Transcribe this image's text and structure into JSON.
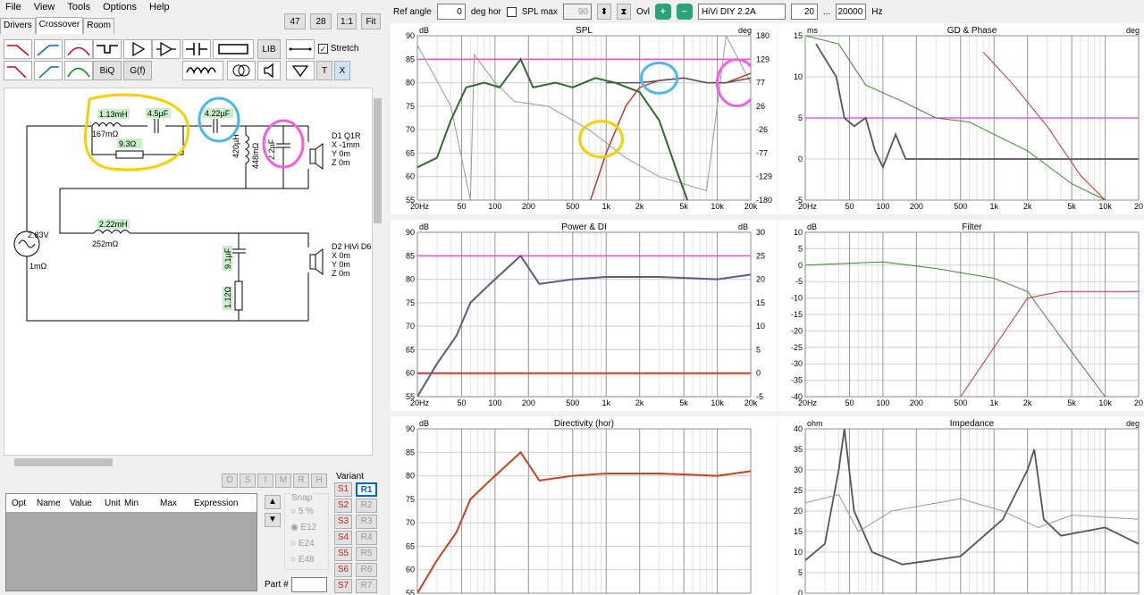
{
  "menu": [
    "File",
    "View",
    "Tools",
    "Options",
    "Help"
  ],
  "tabs": [
    "Drivers",
    "Crossover",
    "Room"
  ],
  "active_tab": "Crossover",
  "view_buttons": [
    "47",
    "28",
    "1:1",
    "Fit"
  ],
  "toolbar": {
    "lib": "LIB",
    "stretch": "Stretch",
    "biq": "BiQ",
    "gf": "G(f)",
    "t": "T",
    "x": "X"
  },
  "circuit": {
    "source_voltage": "2.83V",
    "source_res": "1mΩ",
    "l1": "1.13mH",
    "l1_res": "167mΩ",
    "c1": "4.5µF",
    "r1": "9.3Ω",
    "c2": "4.22µF",
    "l2": "420µH",
    "l2_res": "448mΩ",
    "c3": "2.2µF",
    "d1_name": "D1 Q1R",
    "d1_x": "X -1mm",
    "d1_y": "Y 0m",
    "d1_z": "Z 0m",
    "l3": "2.22mH",
    "l3_res": "252mΩ",
    "c4": "9.1µF",
    "r2": "1.12Ω",
    "d2_name": "D2 HiVi D6",
    "d2_x": "X 0m",
    "d2_y": "Y 0m",
    "d2_z": "Z 0m"
  },
  "opt_buttons": [
    "O",
    "S",
    "I",
    "M",
    "R",
    "H"
  ],
  "table_headers": [
    "Opt",
    "Name",
    "Value",
    "Unit",
    "Min",
    "Max",
    "Expression"
  ],
  "snap": {
    "label": "Snap",
    "options": [
      "5 %",
      "E12",
      "E24",
      "E48"
    ],
    "selected": "E12"
  },
  "part_label": "Part #",
  "variant": {
    "label": "Variant",
    "s": [
      "S1",
      "S2",
      "S3",
      "S4",
      "S5",
      "S6",
      "S7"
    ],
    "r": [
      "R1",
      "R2",
      "R3",
      "R4",
      "R5",
      "R6",
      "R7"
    ]
  },
  "topbar": {
    "ref_angle_label": "Ref angle",
    "ref_angle": "0",
    "deg_hor": "deg hor",
    "spl_max_label": "SPL max",
    "spl_max": "90",
    "ovl": "Ovl",
    "driver": "HiVi DIY 2.2A",
    "f_min": "20",
    "dots": "...",
    "f_max": "20000",
    "hz": "Hz"
  },
  "plots": {
    "spl": {
      "title": "SPL",
      "unit_l": "dB",
      "unit_r": "deg",
      "y": [
        "90",
        "85",
        "80",
        "75",
        "70",
        "65",
        "60",
        "55"
      ],
      "yr": [
        "180",
        "129",
        "77",
        "26",
        "-26",
        "-77",
        "-129",
        "-180"
      ]
    },
    "gd": {
      "title": "GD & Phase",
      "unit_l": "ms",
      "unit_r": "deg",
      "y": [
        "15",
        "10",
        "5",
        "0",
        "-5"
      ]
    },
    "power": {
      "title": "Power & DI",
      "unit_l": "dB",
      "unit_r": "dB",
      "y": [
        "90",
        "85",
        "80",
        "75",
        "70",
        "65",
        "60",
        "55"
      ],
      "yr": [
        "30",
        "25",
        "20",
        "15",
        "10",
        "5",
        "0",
        "-5"
      ]
    },
    "filter": {
      "title": "Filter",
      "unit_l": "dB",
      "y": [
        "10",
        "5",
        "0",
        "-5",
        "-10",
        "-15",
        "-20",
        "-25",
        "-30",
        "-35",
        "-40"
      ]
    },
    "dir": {
      "title": "Directivity (hor)",
      "unit_l": "dB",
      "y": [
        "90",
        "85",
        "80",
        "75",
        "70",
        "65",
        "60",
        "55"
      ]
    },
    "imp": {
      "title": "Impedance",
      "unit_l": "ohm",
      "unit_r": "deg",
      "y": [
        "40",
        "35",
        "30",
        "25",
        "20",
        "15",
        "10",
        "5",
        "0"
      ]
    },
    "x_ticks": [
      "20Hz",
      "50",
      "100",
      "200",
      "500",
      "1k",
      "2k",
      "5k",
      "10k",
      "20k"
    ],
    "x_ticks_right": [
      "20Hz",
      "50",
      "100",
      "200",
      "500",
      "1k",
      "2k",
      "5k",
      "10k",
      "20"
    ]
  },
  "colors": {
    "tweeter": "#c0392b",
    "woofer": "#3a8a2e",
    "sum": "#555555",
    "ref_line": "#e040e0",
    "di": "#e03030",
    "power": "#556080",
    "dir": "#c84020",
    "dark_green": "#2e6b2a"
  }
}
